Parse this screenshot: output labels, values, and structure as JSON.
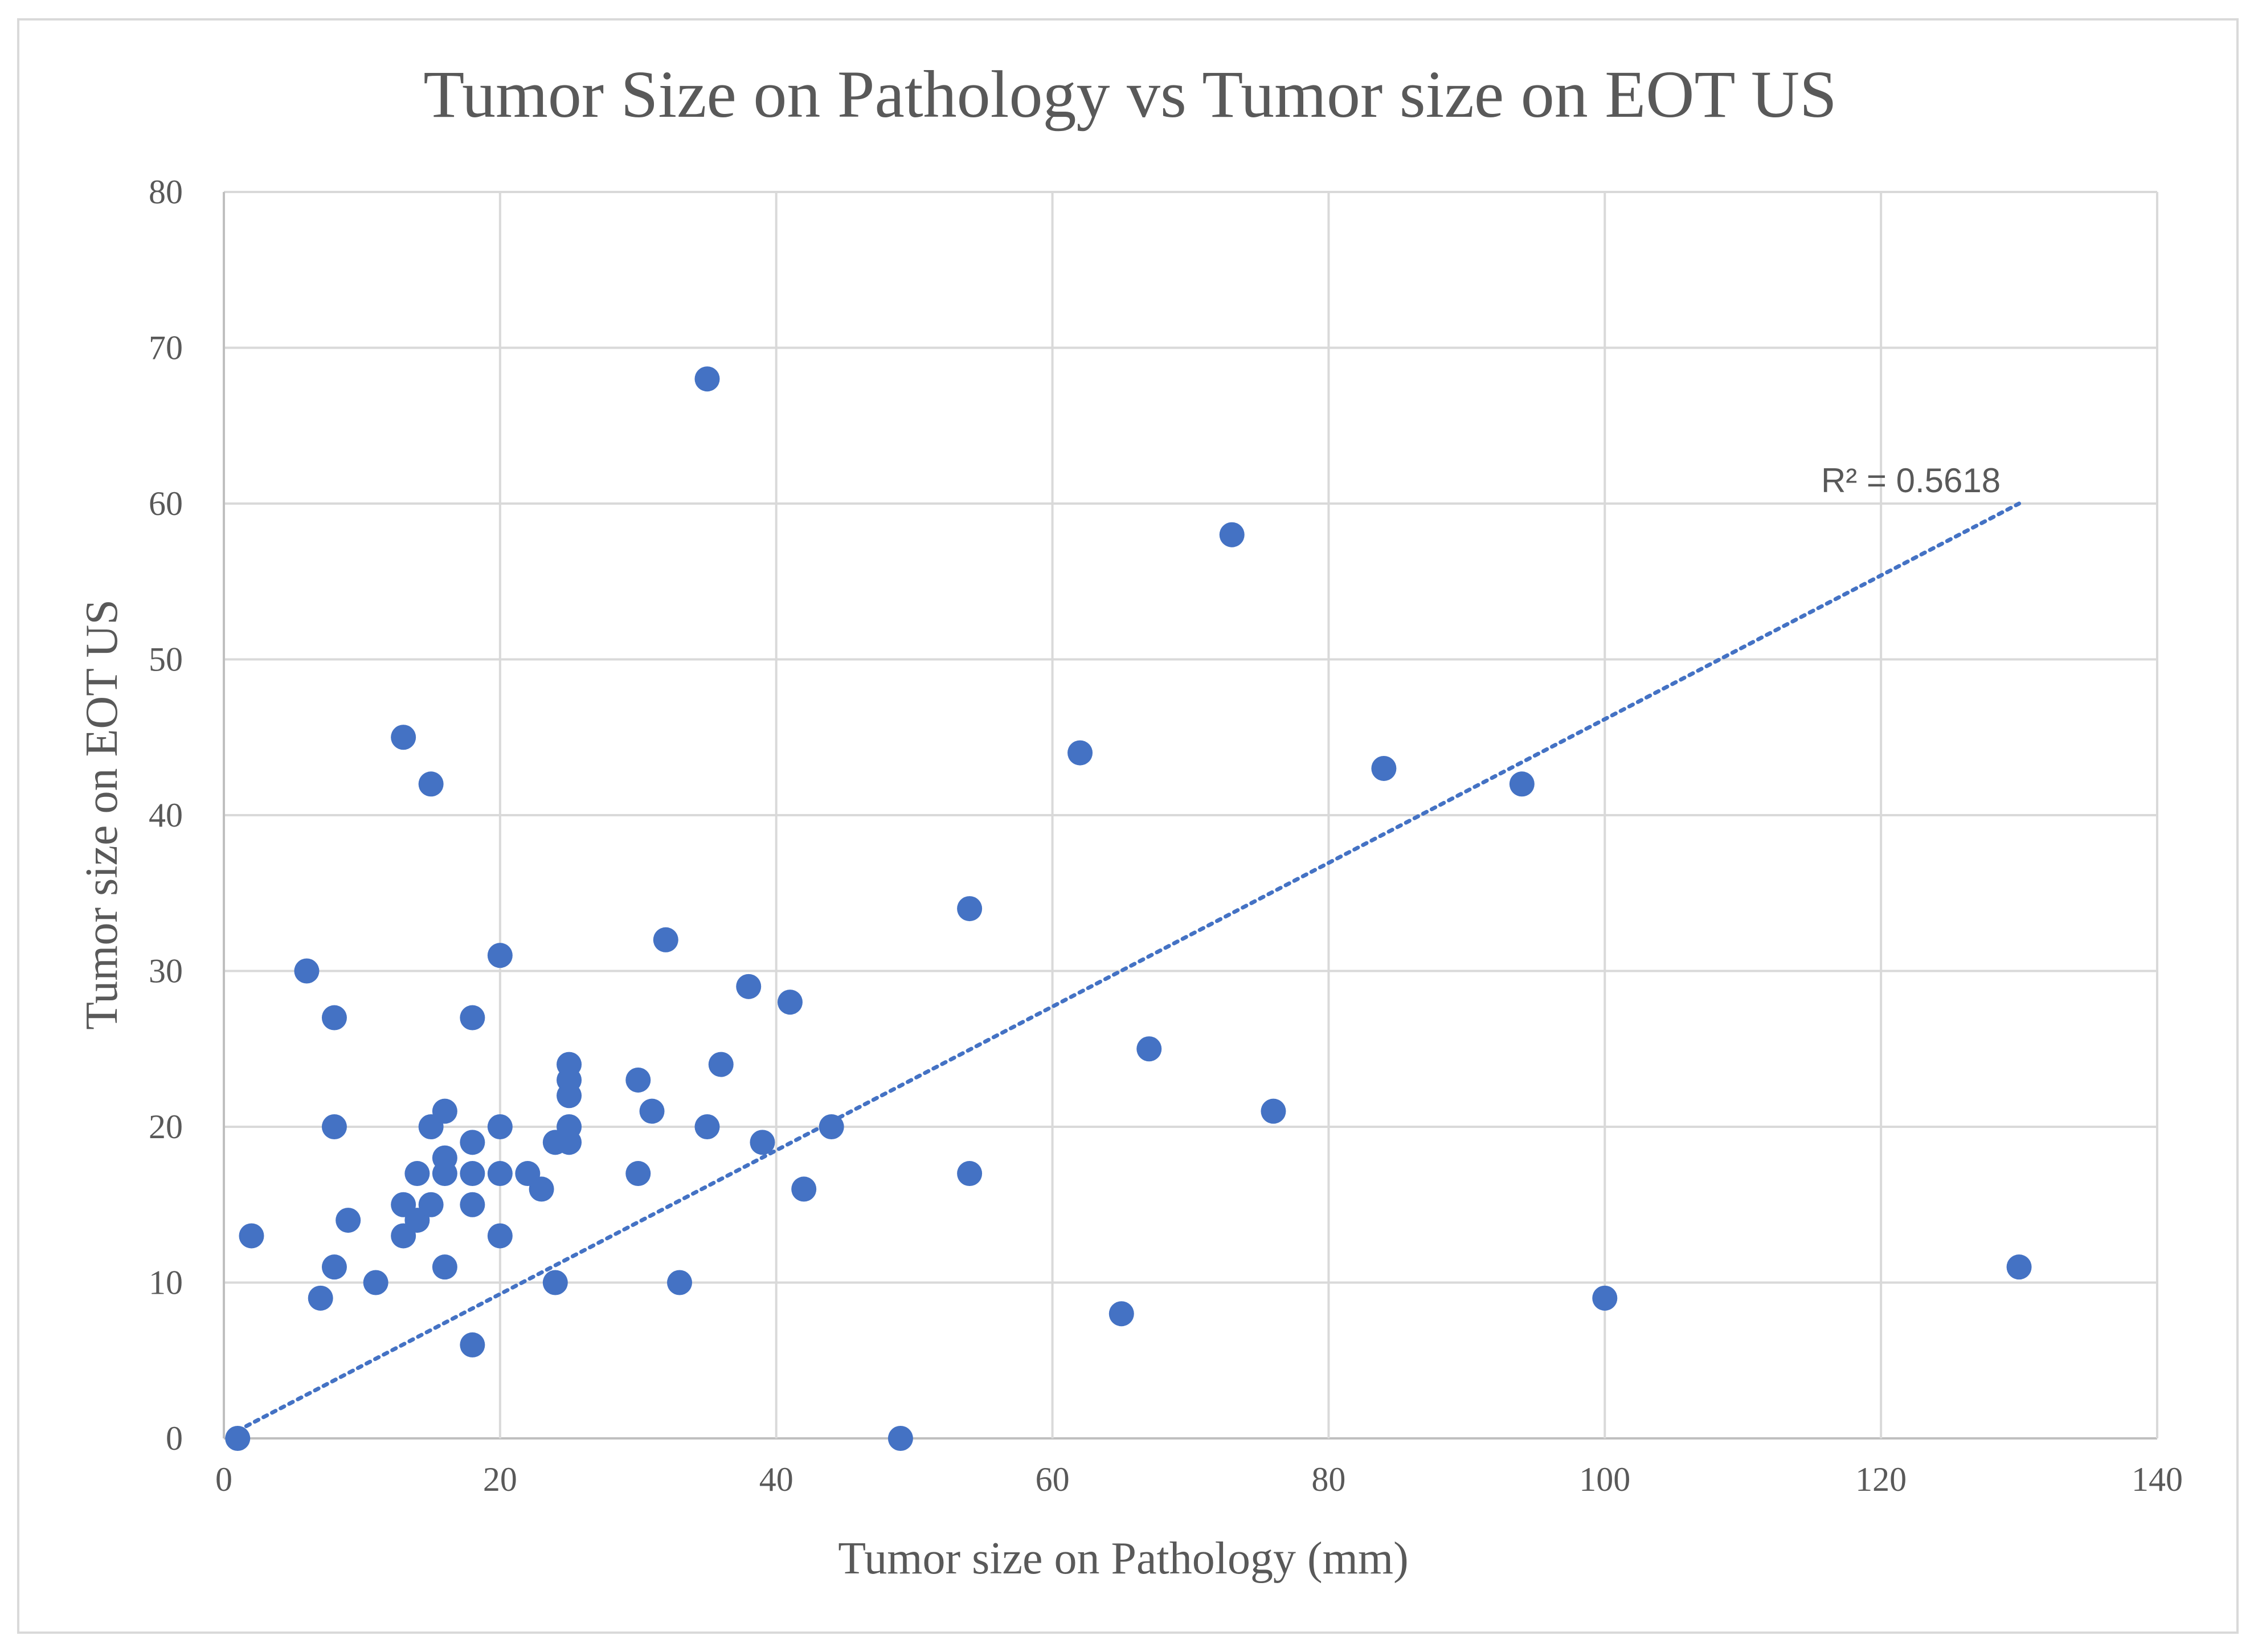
{
  "chart_data": {
    "type": "scatter",
    "title": "Tumor Size on Pathology  vs Tumor size on EOT US",
    "xlabel": "Tumor size on Pathology (mm)",
    "ylabel": "Tumor size on EOT US",
    "xlim": [
      0,
      140
    ],
    "ylim": [
      0,
      80
    ],
    "xticks": [
      0,
      20,
      40,
      60,
      80,
      100,
      120,
      140
    ],
    "yticks": [
      0,
      10,
      20,
      30,
      40,
      50,
      60,
      70,
      80
    ],
    "grid": true,
    "colors": {
      "points": "#4472c4",
      "trendline": "#4472c4",
      "gridlines": "#d9d9d9",
      "text": "#595959"
    },
    "trendline": {
      "type": "linear",
      "x": [
        1,
        130
      ],
      "y": [
        0.5,
        60
      ],
      "label": "R² = 0.5618"
    },
    "series": [
      {
        "name": "Tumor size",
        "points": [
          [
            1,
            0
          ],
          [
            2,
            13
          ],
          [
            6,
            30
          ],
          [
            7,
            9
          ],
          [
            8,
            27
          ],
          [
            8,
            20
          ],
          [
            8,
            11
          ],
          [
            9,
            14
          ],
          [
            11,
            10
          ],
          [
            13,
            45
          ],
          [
            13,
            15
          ],
          [
            13,
            13
          ],
          [
            14,
            17
          ],
          [
            14,
            14
          ],
          [
            15,
            42
          ],
          [
            15,
            20
          ],
          [
            15,
            15
          ],
          [
            16,
            21
          ],
          [
            16,
            18
          ],
          [
            16,
            17
          ],
          [
            16,
            11
          ],
          [
            18,
            27
          ],
          [
            18,
            19
          ],
          [
            18,
            17
          ],
          [
            18,
            15
          ],
          [
            18,
            6
          ],
          [
            20,
            31
          ],
          [
            20,
            20
          ],
          [
            20,
            17
          ],
          [
            20,
            13
          ],
          [
            22,
            17
          ],
          [
            23,
            16
          ],
          [
            24,
            19
          ],
          [
            24,
            10
          ],
          [
            25,
            24
          ],
          [
            25,
            23
          ],
          [
            25,
            22
          ],
          [
            25,
            20
          ],
          [
            25,
            19
          ],
          [
            30,
            23
          ],
          [
            30,
            17
          ],
          [
            31,
            21
          ],
          [
            32,
            32
          ],
          [
            33,
            10
          ],
          [
            35,
            68
          ],
          [
            35,
            20
          ],
          [
            36,
            24
          ],
          [
            38,
            29
          ],
          [
            39,
            19
          ],
          [
            41,
            28
          ],
          [
            42,
            16
          ],
          [
            44,
            20
          ],
          [
            49,
            0
          ],
          [
            54,
            34
          ],
          [
            54,
            17
          ],
          [
            62,
            44
          ],
          [
            65,
            8
          ],
          [
            67,
            25
          ],
          [
            73,
            58
          ],
          [
            76,
            21
          ],
          [
            84,
            43
          ],
          [
            94,
            42
          ],
          [
            100,
            9
          ],
          [
            130,
            11
          ]
        ]
      }
    ]
  }
}
